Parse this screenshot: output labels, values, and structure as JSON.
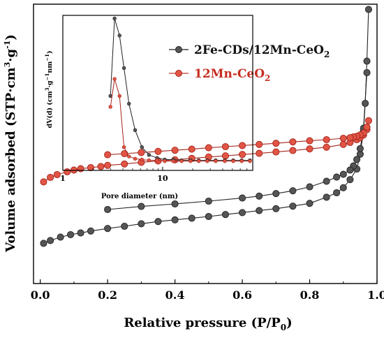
{
  "chart_data": [
    {
      "type": "scatter",
      "title": "",
      "xlabel": "Relative pressure (P/P0)",
      "xlabel_parts": {
        "main": "Relative pressure (P/P",
        "sub": "0",
        "close": ")"
      },
      "ylabel": "Volume adsorbed (STP·cm3·g-1)",
      "ylabel_parts": {
        "main": "Volume adsorbed (STP·cm",
        "sup1": "3",
        "mid": "·g",
        "sup2": "-1",
        "close": ")"
      },
      "xlim": [
        -0.02,
        1.0
      ],
      "x_ticks": [
        0.0,
        0.2,
        0.4,
        0.6,
        0.8,
        1.0
      ],
      "x_tick_labels": [
        "0.0",
        "0.2",
        "0.4",
        "0.6",
        "0.8",
        "1.0"
      ],
      "y_ticks": "none",
      "ylim": [
        0,
        100
      ],
      "grid": false,
      "legend": "top-right",
      "series": [
        {
          "name": "2Fe-CDs/12Mn-CeO2",
          "legend_parts": {
            "main": "2Fe-CDs/12Mn-CeO",
            "sub": "2"
          },
          "color": "#555555",
          "edge": "#222222",
          "adsorption": {
            "x": [
              0.01,
              0.03,
              0.06,
              0.09,
              0.12,
              0.15,
              0.2,
              0.25,
              0.3,
              0.35,
              0.4,
              0.45,
              0.5,
              0.55,
              0.6,
              0.65,
              0.7,
              0.75,
              0.8,
              0.85,
              0.88,
              0.9,
              0.92,
              0.94,
              0.95,
              0.96,
              0.965,
              0.97,
              0.975
            ],
            "y": [
              14.4,
              15.4,
              16.6,
              17.5,
              18.1,
              18.8,
              19.7,
              20.5,
              21.4,
              22.2,
              22.8,
              23.4,
              24.0,
              24.7,
              25.4,
              26.1,
              26.8,
              27.7,
              28.7,
              30.9,
              32.5,
              34.3,
              37.2,
              41.0,
              46.3,
              54.6,
              64.5,
              79.6,
              98.1
            ]
          },
          "desorption": {
            "x": [
              0.97,
              0.96,
              0.95,
              0.94,
              0.93,
              0.92,
              0.9,
              0.88,
              0.85,
              0.8,
              0.75,
              0.7,
              0.65,
              0.6,
              0.5,
              0.4,
              0.3,
              0.2
            ],
            "y": [
              75.5,
              55.6,
              48.3,
              44.4,
              42.1,
              40.6,
              39.1,
              38.1,
              36.6,
              34.6,
              33.2,
              32.2,
              31.3,
              30.6,
              29.5,
              28.5,
              27.6,
              26.5
            ]
          }
        },
        {
          "name": "12Mn-CeO2",
          "legend_parts": {
            "main": "12Mn-CeO",
            "sub": "2"
          },
          "color": "#e05545",
          "edge": "#a5251c",
          "adsorption": {
            "x": [
              0.01,
              0.03,
              0.05,
              0.08,
              0.1,
              0.12,
              0.15,
              0.18,
              0.2,
              0.25,
              0.3,
              0.35,
              0.4,
              0.45,
              0.5,
              0.55,
              0.6,
              0.65,
              0.7,
              0.75,
              0.8,
              0.85,
              0.9,
              0.92,
              0.94,
              0.95,
              0.96,
              0.97,
              0.975
            ],
            "y": [
              36.4,
              38.0,
              39.0,
              40.0,
              40.6,
              41.1,
              41.5,
              41.9,
              42.3,
              42.8,
              43.4,
              43.9,
              44.3,
              44.8,
              45.3,
              45.7,
              46.2,
              46.6,
              47.1,
              47.6,
              48.2,
              48.8,
              49.8,
              50.5,
              51.5,
              52.2,
              53.2,
              55.1,
              58.3
            ]
          },
          "desorption": {
            "x": [
              0.97,
              0.96,
              0.95,
              0.94,
              0.93,
              0.92,
              0.9,
              0.85,
              0.8,
              0.75,
              0.7,
              0.65,
              0.6,
              0.55,
              0.5,
              0.45,
              0.4,
              0.35,
              0.3,
              0.25,
              0.2
            ],
            "y": [
              56.0,
              53.9,
              53.2,
              52.7,
              52.5,
              52.2,
              52.0,
              51.5,
              51.1,
              50.7,
              50.2,
              49.8,
              49.4,
              49.0,
              48.6,
              48.1,
              47.7,
              47.3,
              46.9,
              46.5,
              46.1
            ]
          }
        }
      ]
    },
    {
      "type": "line",
      "title": "",
      "xlabel": "Pore diameter (nm)",
      "ylabel": "dV(d) (cm3·g-1nm-1)",
      "ylabel_parts": {
        "main": "dV(d) (cm",
        "sup1": "3",
        "mid": "·g",
        "sup2": "−1",
        "mid2": "nm",
        "sup3": "−1",
        "close": ")"
      },
      "xscale": "log",
      "xlim": [
        1,
        80
      ],
      "x_ticks": [
        1,
        10
      ],
      "x_tick_labels": [
        "1",
        "10"
      ],
      "ylim": [
        0,
        100
      ],
      "y_ticks": "none",
      "grid": false,
      "series": [
        {
          "name": "2Fe-CDs/12Mn-CeO2",
          "color": "#555555",
          "edge": "#222222",
          "x": [
            3.0,
            3.3,
            3.7,
            4.1,
            4.6,
            5.3,
            6.2,
            7.3,
            8.8,
            10.5,
            12.8,
            15.5,
            19,
            23,
            28,
            34,
            42,
            51,
            62,
            75
          ],
          "y": [
            48,
            98,
            87,
            66,
            43,
            26,
            15,
            10,
            8,
            7,
            7,
            6.5,
            6.5,
            6.5,
            6.5,
            6.5,
            6.5,
            6.5,
            6.5,
            6.5
          ]
        },
        {
          "name": "12Mn-CeO2",
          "color": "#e05545",
          "edge": "#a5251c",
          "x": [
            3.0,
            3.3,
            3.7,
            4.1,
            4.6,
            5.3,
            6.2,
            7.3,
            8.8,
            10.5,
            12.8,
            15.5,
            19,
            23,
            28,
            34,
            42,
            51,
            62,
            75
          ],
          "y": [
            41,
            59,
            48,
            15,
            9,
            7.5,
            7,
            6.5,
            6.5,
            6,
            6,
            6,
            6,
            6,
            6,
            6,
            6,
            6,
            6,
            6
          ]
        }
      ]
    }
  ]
}
